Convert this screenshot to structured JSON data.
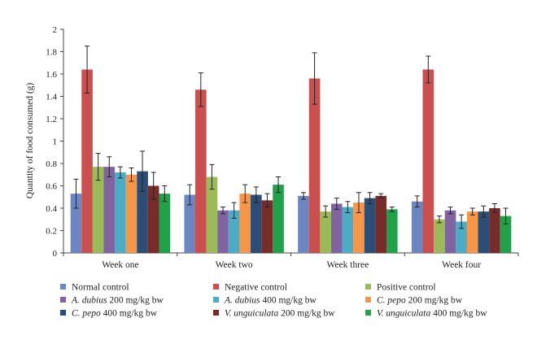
{
  "chart_data": {
    "type": "bar",
    "title": "",
    "xlabel": "",
    "ylabel": "Quantity of food consumed (g)",
    "ylim": [
      0,
      2
    ],
    "yticks": [
      "0",
      "0.2",
      "0.4",
      "0.6",
      "0.8",
      "1",
      "1.2",
      "1.4",
      "1.6",
      "1.8",
      "2"
    ],
    "categories": [
      "Week one",
      "Week two",
      "Week three",
      "Week four"
    ],
    "grid": false,
    "legend_position": "bottom",
    "series": [
      {
        "name": "Normal control",
        "color": "#6b86c0",
        "values": [
          0.53,
          0.52,
          0.51,
          0.46
        ],
        "errors": [
          0.13,
          0.09,
          0.03,
          0.05
        ]
      },
      {
        "name": "Negative control",
        "color": "#c9504f",
        "values": [
          1.64,
          1.46,
          1.56,
          1.64
        ],
        "errors": [
          0.21,
          0.15,
          0.23,
          0.12
        ]
      },
      {
        "name": "Positive control",
        "color": "#9bbb59",
        "values": [
          0.77,
          0.68,
          0.37,
          0.3
        ],
        "errors": [
          0.12,
          0.11,
          0.05,
          0.03
        ]
      },
      {
        "name_italic": "A. dubius",
        "name_rest": " 200 mg/kg bw",
        "color": "#8064a2",
        "values": [
          0.77,
          0.38,
          0.44,
          0.38
        ],
        "errors": [
          0.09,
          0.03,
          0.05,
          0.03
        ]
      },
      {
        "name_italic": "A. dubius",
        "name_rest": " 400 mg/kg bw",
        "color": "#4bacc6",
        "values": [
          0.72,
          0.38,
          0.41,
          0.28
        ],
        "errors": [
          0.05,
          0.07,
          0.05,
          0.06
        ]
      },
      {
        "name_italic": "C. pepo",
        "name_rest": " 200 mg/kg bw",
        "color": "#f79646",
        "values": [
          0.7,
          0.53,
          0.45,
          0.37
        ],
        "errors": [
          0.06,
          0.08,
          0.09,
          0.03
        ]
      },
      {
        "name_italic": "C. pepo",
        "name_rest": " 400 mg/kg bw",
        "color": "#2c4d75",
        "values": [
          0.73,
          0.52,
          0.49,
          0.37
        ],
        "errors": [
          0.18,
          0.07,
          0.05,
          0.05
        ]
      },
      {
        "name_italic": "V. unguiculata",
        "name_rest": " 200 mg/kg bw",
        "color": "#772c2a",
        "values": [
          0.6,
          0.47,
          0.51,
          0.4
        ],
        "errors": [
          0.12,
          0.06,
          0.02,
          0.04
        ]
      },
      {
        "name_italic": "V. unguiculata",
        "name_rest": " 400 mg/kg bw",
        "color": "#1fa24a",
        "values": [
          0.53,
          0.61,
          0.39,
          0.33
        ],
        "errors": [
          0.07,
          0.07,
          0.02,
          0.07
        ]
      }
    ]
  }
}
